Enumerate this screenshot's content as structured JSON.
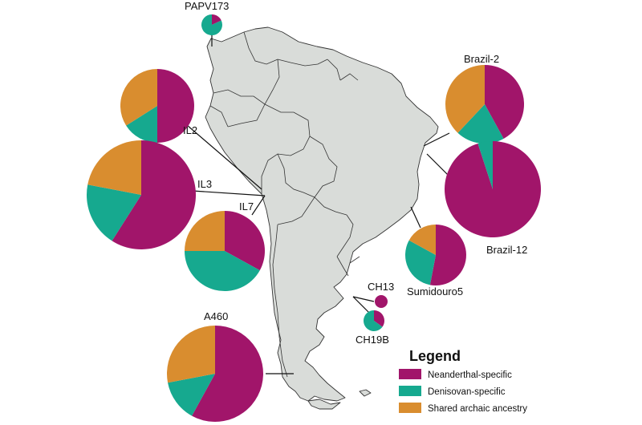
{
  "colors": {
    "neanderthal": "#a1156a",
    "denisovan": "#16a98f",
    "shared": "#d98d2f"
  },
  "legend": {
    "title": "Legend",
    "items": [
      {
        "label": "Neanderthal-specific",
        "key": "neanderthal"
      },
      {
        "label": "Denisovan-specific",
        "key": "denisovan"
      },
      {
        "label": "Shared archaic ancestry",
        "key": "shared"
      }
    ]
  },
  "samples": [
    {
      "id": "PAPV173",
      "label": "PAPV173",
      "fractions": {
        "neanderthal": 0.18,
        "denisovan": 0.82,
        "shared": 0.0
      }
    },
    {
      "id": "IL2",
      "label": "IL2",
      "fractions": {
        "neanderthal": 0.5,
        "denisovan": 0.16,
        "shared": 0.34
      }
    },
    {
      "id": "IL3",
      "label": "IL3",
      "fractions": {
        "neanderthal": 0.59,
        "denisovan": 0.19,
        "shared": 0.22
      }
    },
    {
      "id": "IL7",
      "label": "IL7",
      "fractions": {
        "neanderthal": 0.33,
        "denisovan": 0.42,
        "shared": 0.25
      }
    },
    {
      "id": "A460",
      "label": "A460",
      "fractions": {
        "neanderthal": 0.58,
        "denisovan": 0.14,
        "shared": 0.28
      }
    },
    {
      "id": "Brazil-2",
      "label": "Brazil-2",
      "fractions": {
        "neanderthal": 0.42,
        "denisovan": 0.2,
        "shared": 0.38
      }
    },
    {
      "id": "Brazil-12",
      "label": "Brazil-12",
      "fractions": {
        "neanderthal": 0.95,
        "denisovan": 0.05,
        "shared": 0.0
      }
    },
    {
      "id": "Sumidouro5",
      "label": "Sumidouro5",
      "fractions": {
        "neanderthal": 0.53,
        "denisovan": 0.3,
        "shared": 0.17
      }
    },
    {
      "id": "CH13",
      "label": "CH13",
      "fractions": {
        "neanderthal": 1.0,
        "denisovan": 0.0,
        "shared": 0.0
      }
    },
    {
      "id": "CH19B",
      "label": "CH19B",
      "fractions": {
        "neanderthal": 0.35,
        "denisovan": 0.65,
        "shared": 0.0
      }
    }
  ]
}
